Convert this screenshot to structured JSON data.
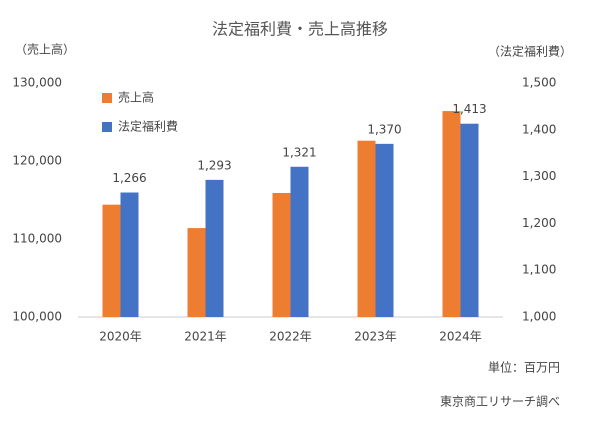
{
  "chart_data": {
    "type": "bar",
    "title": "法定福利費・売上高推移",
    "y_label": "（売上高）",
    "y2_label": "（法定福利費）",
    "categories": [
      "2020年",
      "2021年",
      "2022年",
      "2023年",
      "2024年"
    ],
    "series": [
      {
        "name": "売上高",
        "color": "#ed7d31",
        "values": [
          114400,
          111400,
          115900,
          122600,
          126400
        ]
      },
      {
        "name": "法定福利費",
        "color": "#4472c4",
        "axis": "y2",
        "values": [
          1266,
          1293,
          1321,
          1370,
          1413
        ],
        "value_labels": [
          "1,266",
          "1,293",
          "1,321",
          "1,370",
          "1,413"
        ]
      }
    ],
    "ylim": [
      100000,
      130000
    ],
    "yticks": [
      {
        "value": 100000,
        "label": "100,000"
      },
      {
        "value": 110000,
        "label": "110,000"
      },
      {
        "value": 120000,
        "label": "120,000"
      },
      {
        "value": 130000,
        "label": "130,000"
      }
    ],
    "y2lim": [
      1000,
      1500
    ],
    "y2ticks": [
      {
        "value": 1000,
        "label": "1,000"
      },
      {
        "value": 1100,
        "label": "1,100"
      },
      {
        "value": 1200,
        "label": "1,200"
      },
      {
        "value": 1300,
        "label": "1,300"
      },
      {
        "value": 1400,
        "label": "1,400"
      },
      {
        "value": 1500,
        "label": "1,500"
      }
    ],
    "grid": false,
    "legend": "top-left",
    "unit_note": "単位：百万円",
    "source": "東京商工リサーチ調べ"
  }
}
